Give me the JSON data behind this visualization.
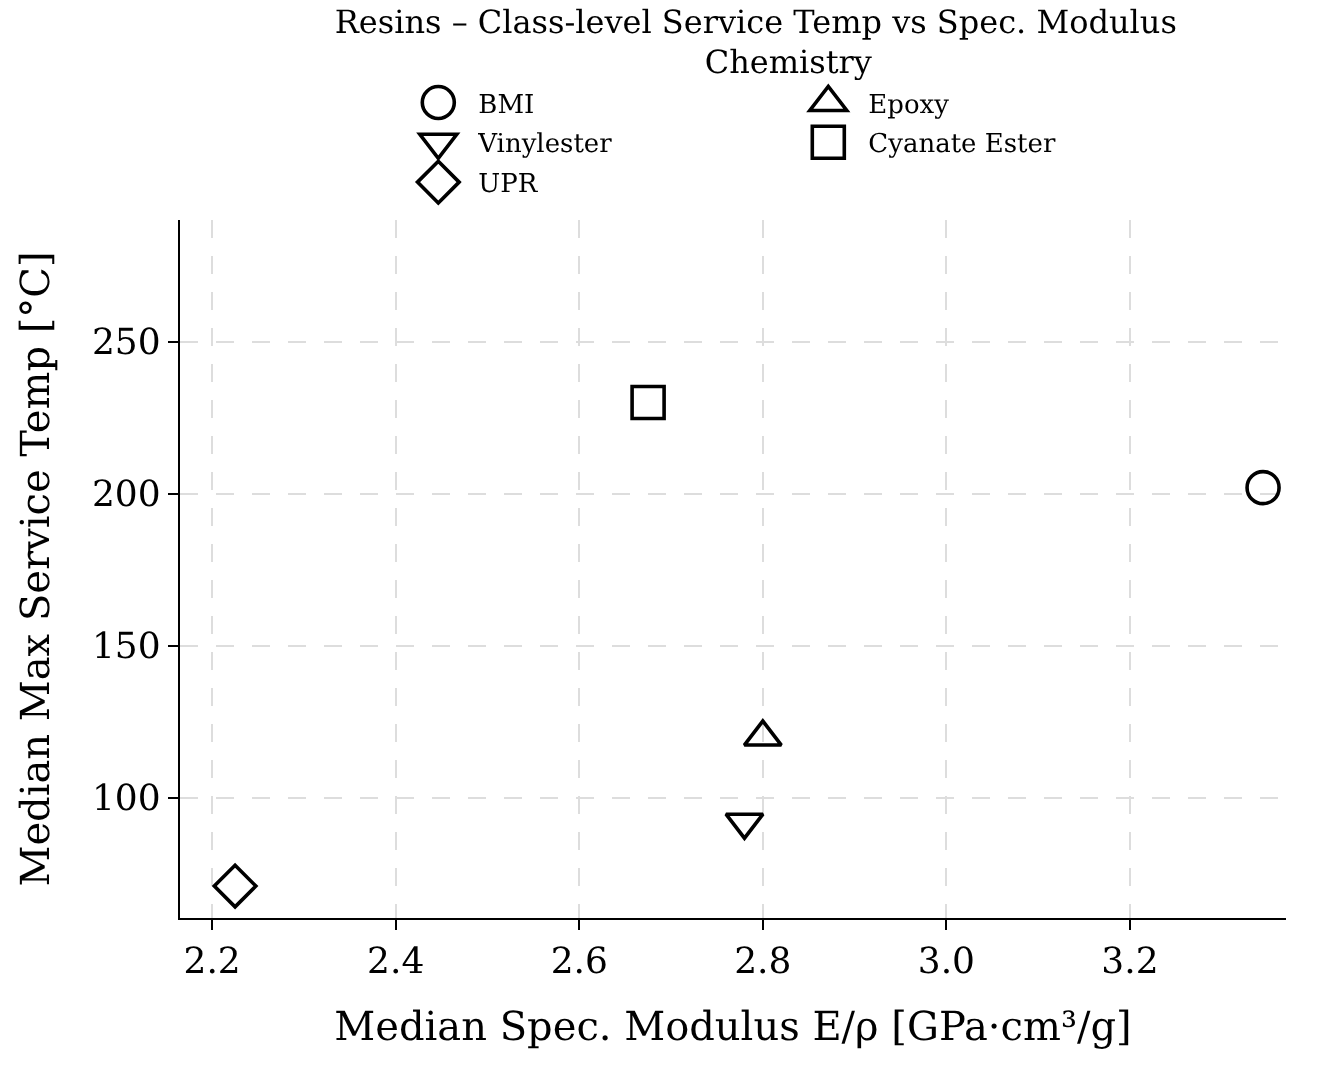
{
  "chart_data": {
    "type": "scatter",
    "title": "Resins – Class-level Service Temp vs Spec. Modulus",
    "xlabel": "Median Spec. Modulus E/ρ [GPa·cm³/g]",
    "ylabel": "Median Max Service Temp [°C]",
    "legend_title": "Chemistry",
    "legend": "top",
    "series": [
      {
        "name": "BMI",
        "color": "#000000",
        "marker": "circle",
        "x": [
          3.345
        ],
        "values": [
          202
        ]
      },
      {
        "name": "Epoxy",
        "color": "#000000",
        "marker": "triangle",
        "x": [
          2.8
        ],
        "values": [
          120
        ]
      },
      {
        "name": "Vinylester",
        "color": "#000000",
        "marker": "triangle-down",
        "x": [
          2.78
        ],
        "values": [
          92
        ]
      },
      {
        "name": "Cyanate Ester",
        "color": "#000000",
        "marker": "square",
        "x": [
          2.675
        ],
        "values": [
          230
        ]
      },
      {
        "name": "UPR",
        "color": "#000000",
        "marker": "diamond",
        "x": [
          2.225
        ],
        "values": [
          71
        ]
      }
    ],
    "xlim": [
      2.165,
      3.37
    ],
    "xticks": [
      2.2,
      2.4,
      2.6,
      2.8,
      {
        "value": 3,
        "label": "3.0"
      },
      3.2
    ],
    "ylim": [
      60.5,
      290
    ],
    "yticks": [
      100,
      150,
      200,
      250
    ],
    "grid": true
  }
}
